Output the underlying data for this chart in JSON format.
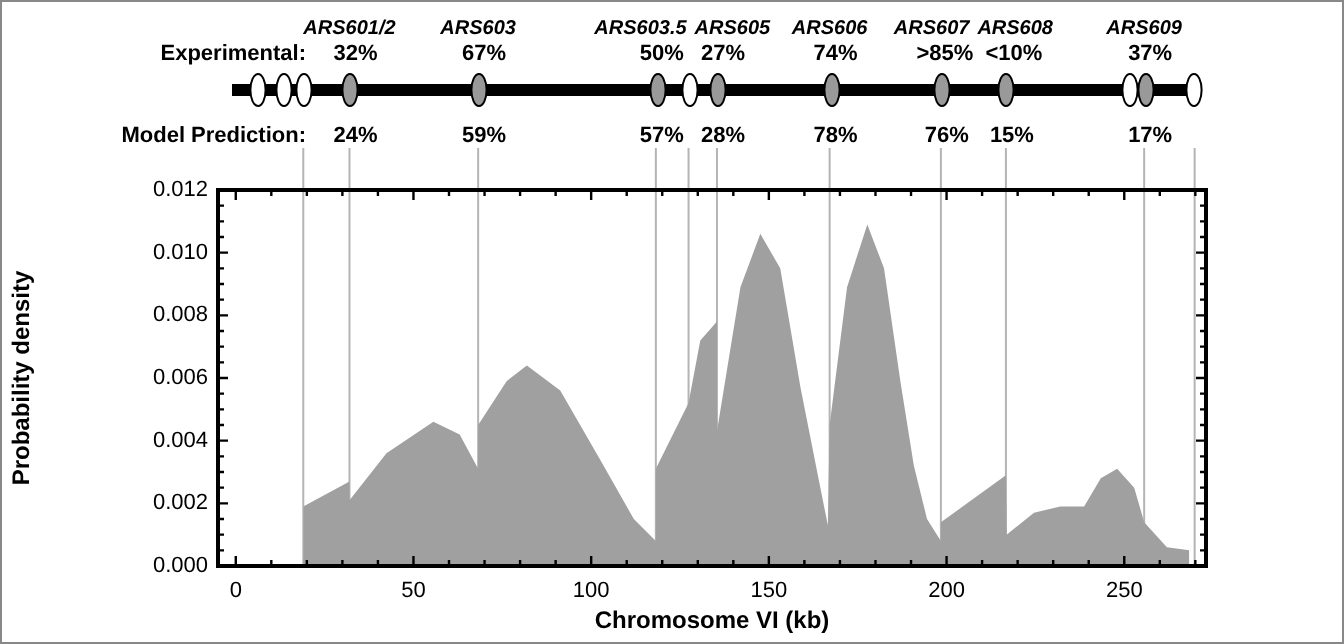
{
  "chart_data": {
    "type": "area",
    "xlabel": "Chromosome VI (kb)",
    "ylabel": "Probability density",
    "color": "#a0a0a0",
    "x": [
      19,
      32,
      32,
      42.4,
      55.6,
      63,
      68.2,
      68.2,
      76.2,
      81.9,
      91.3,
      102.5,
      112,
      118.2,
      118.2,
      127.4,
      130.7,
      135.4,
      135.4,
      142,
      147.6,
      153.2,
      158.9,
      163.6,
      166.6,
      167.1,
      172,
      177.7,
      182.4,
      187,
      190.8,
      194.5,
      198.4,
      198.4,
      205.8,
      216.7,
      216.9,
      224.6,
      232,
      238.7,
      243.4,
      248,
      252.8,
      255.6,
      262,
      268.3
    ],
    "values": [
      0.0019,
      0.0027,
      0.0021,
      0.0036,
      0.0046,
      0.0042,
      0.0031,
      0.0045,
      0.0059,
      0.0064,
      0.0056,
      0.0034,
      0.0015,
      0.0008,
      0.0031,
      0.0052,
      0.0072,
      0.0078,
      0.0043,
      0.0089,
      0.0106,
      0.0095,
      0.0057,
      0.003,
      0.0013,
      0.0045,
      0.0089,
      0.0109,
      0.0095,
      0.0059,
      0.0032,
      0.0015,
      0.0008,
      0.0014,
      0.002,
      0.0029,
      0.001,
      0.0017,
      0.0019,
      0.0019,
      0.0028,
      0.0031,
      0.0025,
      0.0014,
      0.0006,
      0.0005
    ],
    "xlim": [
      -5,
      273
    ],
    "xticks": [
      0,
      {
        "value": 10,
        "label": null
      },
      {
        "value": 20,
        "label": null
      },
      {
        "value": 30,
        "label": null
      },
      {
        "value": 40,
        "label": null
      },
      50,
      {
        "value": 60,
        "label": null
      },
      {
        "value": 70,
        "label": null
      },
      {
        "value": 80,
        "label": null
      },
      {
        "value": 90,
        "label": null
      },
      100,
      {
        "value": 110,
        "label": null
      },
      {
        "value": 120,
        "label": null
      },
      {
        "value": 130,
        "label": null
      },
      {
        "value": 140,
        "label": null
      },
      150,
      {
        "value": 160,
        "label": null
      },
      {
        "value": 170,
        "label": null
      },
      {
        "value": 180,
        "label": null
      },
      {
        "value": 190,
        "label": null
      },
      200,
      {
        "value": 210,
        "label": null
      },
      {
        "value": 220,
        "label": null
      },
      {
        "value": 230,
        "label": null
      },
      {
        "value": 240,
        "label": null
      },
      250,
      {
        "value": 260,
        "label": null
      },
      {
        "value": 270,
        "label": null
      }
    ],
    "ylim": [
      0,
      0.012
    ],
    "yticks": [
      {
        "value": 0,
        "label": "0.000"
      },
      {
        "value": 0.0005,
        "label": null
      },
      {
        "value": 0.001,
        "label": null
      },
      {
        "value": 0.0015,
        "label": null
      },
      {
        "value": 0.002,
        "label": "0.002"
      },
      {
        "value": 0.0025,
        "label": null
      },
      {
        "value": 0.003,
        "label": null
      },
      {
        "value": 0.0035,
        "label": null
      },
      {
        "value": 0.004,
        "label": "0.004"
      },
      {
        "value": 0.0045,
        "label": null
      },
      {
        "value": 0.005,
        "label": null
      },
      {
        "value": 0.0055,
        "label": null
      },
      {
        "value": 0.006,
        "label": "0.006"
      },
      {
        "value": 0.0065,
        "label": null
      },
      {
        "value": 0.007,
        "label": null
      },
      {
        "value": 0.0075,
        "label": null
      },
      {
        "value": 0.008,
        "label": "0.008"
      },
      {
        "value": 0.0085,
        "label": null
      },
      {
        "value": 0.009,
        "label": null
      },
      {
        "value": 0.0095,
        "label": null
      },
      {
        "value": 0.01,
        "label": "0.010"
      },
      {
        "value": 0.0105,
        "label": null
      },
      {
        "value": 0.011,
        "label": null
      },
      {
        "value": 0.0115,
        "label": null
      },
      {
        "value": 0.012,
        "label": "0.012"
      }
    ],
    "ref_lines": [
      {
        "axis": "x",
        "value": 19,
        "color": "#b4b4b4"
      },
      {
        "axis": "x",
        "value": 32,
        "color": "#b4b4b4"
      },
      {
        "axis": "x",
        "value": 68.2,
        "color": "#b4b4b4"
      },
      {
        "axis": "x",
        "value": 118.2,
        "color": "#b4b4b4"
      },
      {
        "axis": "x",
        "value": 127.4,
        "color": "#b4b4b4"
      },
      {
        "axis": "x",
        "value": 135.4,
        "color": "#b4b4b4"
      },
      {
        "axis": "x",
        "value": 167.1,
        "color": "#b4b4b4"
      },
      {
        "axis": "x",
        "value": 198.4,
        "color": "#b4b4b4"
      },
      {
        "axis": "x",
        "value": 216.7,
        "color": "#b4b4b4"
      },
      {
        "axis": "x",
        "value": 255.6,
        "color": "#b4b4b4"
      },
      {
        "axis": "x",
        "value": 269.8,
        "color": "#b4b4b4"
      }
    ],
    "annotations": [
      "ARS601/2",
      "ARS603",
      "ARS603.5",
      "ARS605",
      "ARS606",
      "ARS607",
      "ARS608",
      "ARS609",
      "Experimental:",
      "32%",
      "67%",
      "50%",
      "27%",
      "74%",
      ">85%",
      "<10%",
      "37%",
      "Model Prediction:",
      "24%",
      "59%",
      "57%",
      "28%",
      "78%",
      "76%",
      "15%",
      "17%"
    ]
  }
}
